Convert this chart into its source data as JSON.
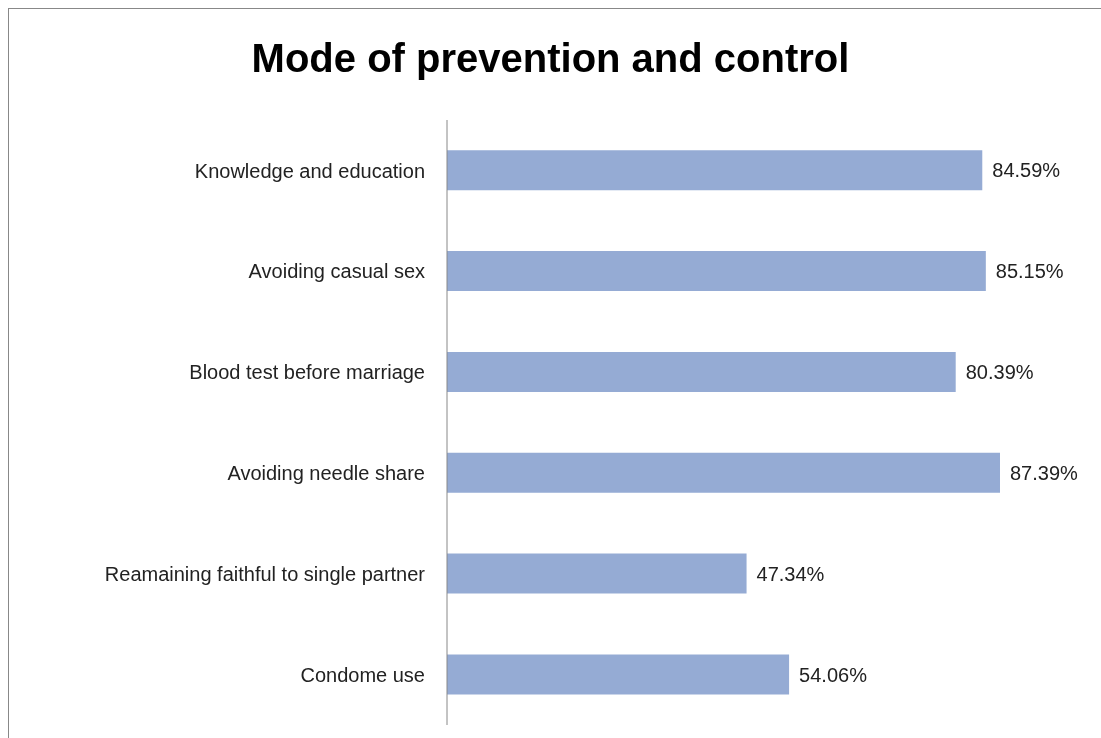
{
  "chart_data": {
    "type": "bar",
    "orientation": "horizontal",
    "title": "Mode of prevention and control",
    "categories": [
      "Knowledge and education",
      "Avoiding casual sex",
      "Blood test before marriage",
      "Avoiding needle share",
      "Reamaining faithful to single partner",
      "Condome use"
    ],
    "values": [
      84.59,
      85.15,
      80.39,
      87.39,
      47.34,
      54.06
    ],
    "value_labels": [
      "84.59%",
      "85.15%",
      "80.39%",
      "87.39%",
      "47.34%",
      "54.06%"
    ],
    "color": "#95abd4",
    "tick_labels": "y"
  }
}
